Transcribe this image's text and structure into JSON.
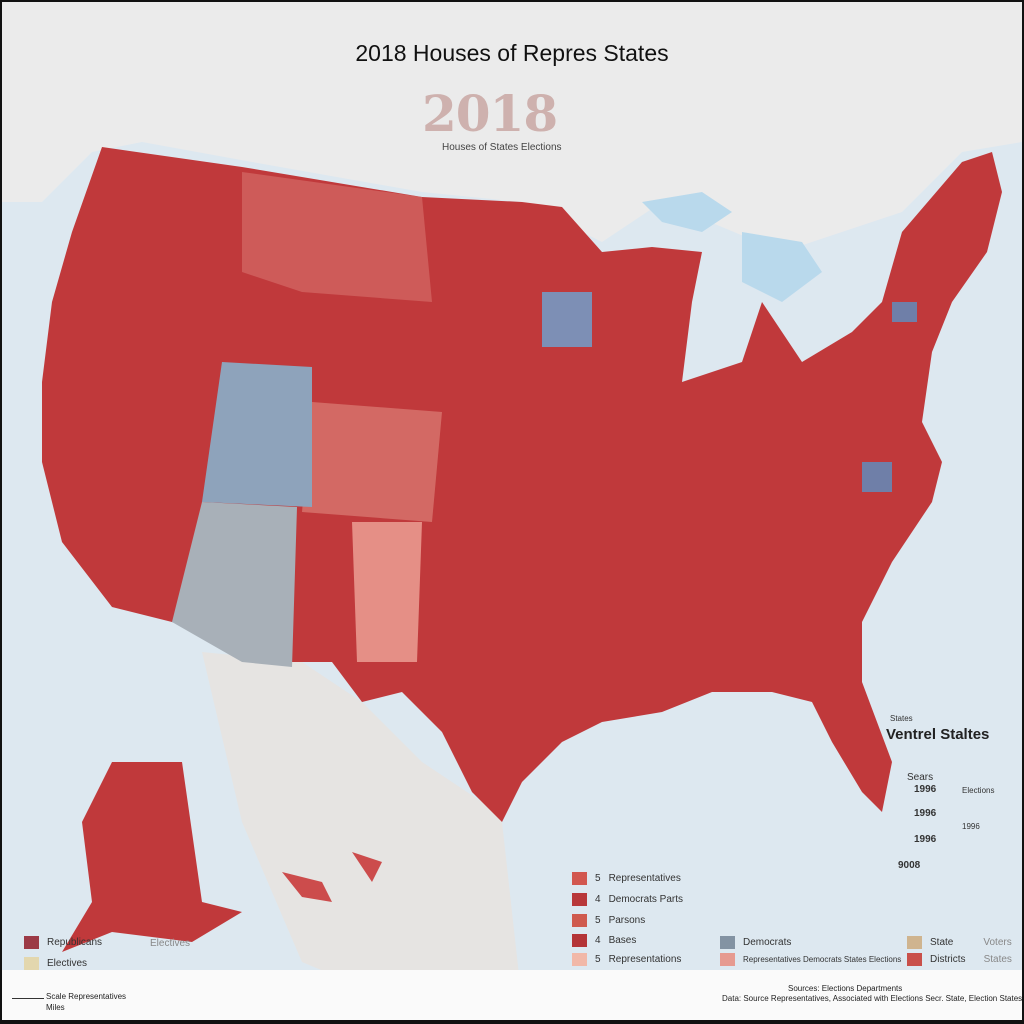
{
  "title": "2018 Houses of Repres States",
  "year_graphic": "2018",
  "subtitle": "Houses of States Elections",
  "colors": {
    "republican": "#c0393b",
    "democrat": "#7f93b0",
    "swing": "#a8b0b8",
    "ocean": "#dde8f0",
    "land": "#ebebeb"
  },
  "inset": {
    "heading": "Ventrel Staltes",
    "small_label": "States",
    "labels": [
      "Sears",
      "1996",
      "1996",
      "1996",
      "9008"
    ],
    "notes": [
      "Elections",
      "1996"
    ]
  },
  "legend_left": [
    {
      "label": "Republicans",
      "color": "#9c3a46"
    },
    {
      "label": "Electives",
      "color": "#e3d7ae"
    }
  ],
  "legend_left_note": "Electives",
  "legend_center": [
    {
      "num": "5",
      "label": "Representatives",
      "color": "#d2574f"
    },
    {
      "num": "4",
      "label": "Democrats Parts",
      "color": "#b8383a"
    },
    {
      "num": "5",
      "label": "Parsons",
      "color": "#cf5a4e"
    },
    {
      "num": "4",
      "label": "Bases",
      "color": "#b43437"
    },
    {
      "num": "5",
      "label": "Representations",
      "color": "#f1b8a8"
    }
  ],
  "legend_mid": [
    {
      "label": "Democrats",
      "color": "#8393a3"
    },
    {
      "label": "Representatives Democrats States Elections",
      "color": "#e69a90"
    }
  ],
  "legend_right": [
    {
      "label": "State",
      "note": "Voters",
      "color": "#cfb48f"
    },
    {
      "label": "Districts",
      "note": "States",
      "color": "#c9504a"
    }
  ],
  "scale": {
    "label": "Scale Representatives",
    "unit": "Miles"
  },
  "footer": {
    "heading": "Sources: Elections Departments",
    "text": "Data: Source Representatives, Associated with Elections Secr. State, Election States"
  }
}
